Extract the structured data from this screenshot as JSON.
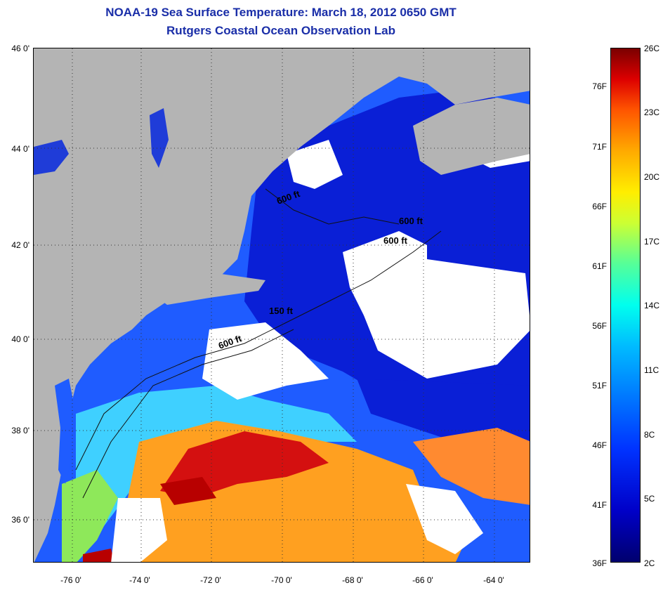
{
  "header": {
    "title": "NOAA-19 Sea Surface Temperature:  March 18, 2012 0650 GMT",
    "subtitle": "Rutgers Coastal Ocean Observation Lab"
  },
  "map": {
    "lat_labels": [
      "46 0'",
      "44 0'",
      "42 0'",
      "40 0'",
      "38 0'",
      "36 0'"
    ],
    "lon_labels": [
      "-76 0'",
      "-74 0'",
      "-72 0'",
      "-70 0'",
      "-68 0'",
      "-66 0'",
      "-64 0'"
    ],
    "depth_labels": [
      "600 ft",
      "600 ft",
      "600 ft",
      "150 ft",
      "600 ft"
    ],
    "colors": {
      "land": "#b4b4b4",
      "cloud": "#ffffff",
      "cold_water": "#0a1fd6",
      "shelf_water": "#1f5cff",
      "warm_water": "#ffa020",
      "hot_water": "#d41010"
    }
  },
  "colorbar": {
    "fahrenheit_labels": [
      "76F",
      "71F",
      "66F",
      "61F",
      "56F",
      "51F",
      "46F",
      "41F",
      "36F"
    ],
    "celsius_labels": [
      "26C",
      "23C",
      "20C",
      "17C",
      "14C",
      "11C",
      "8C",
      "5C",
      "2C"
    ]
  }
}
